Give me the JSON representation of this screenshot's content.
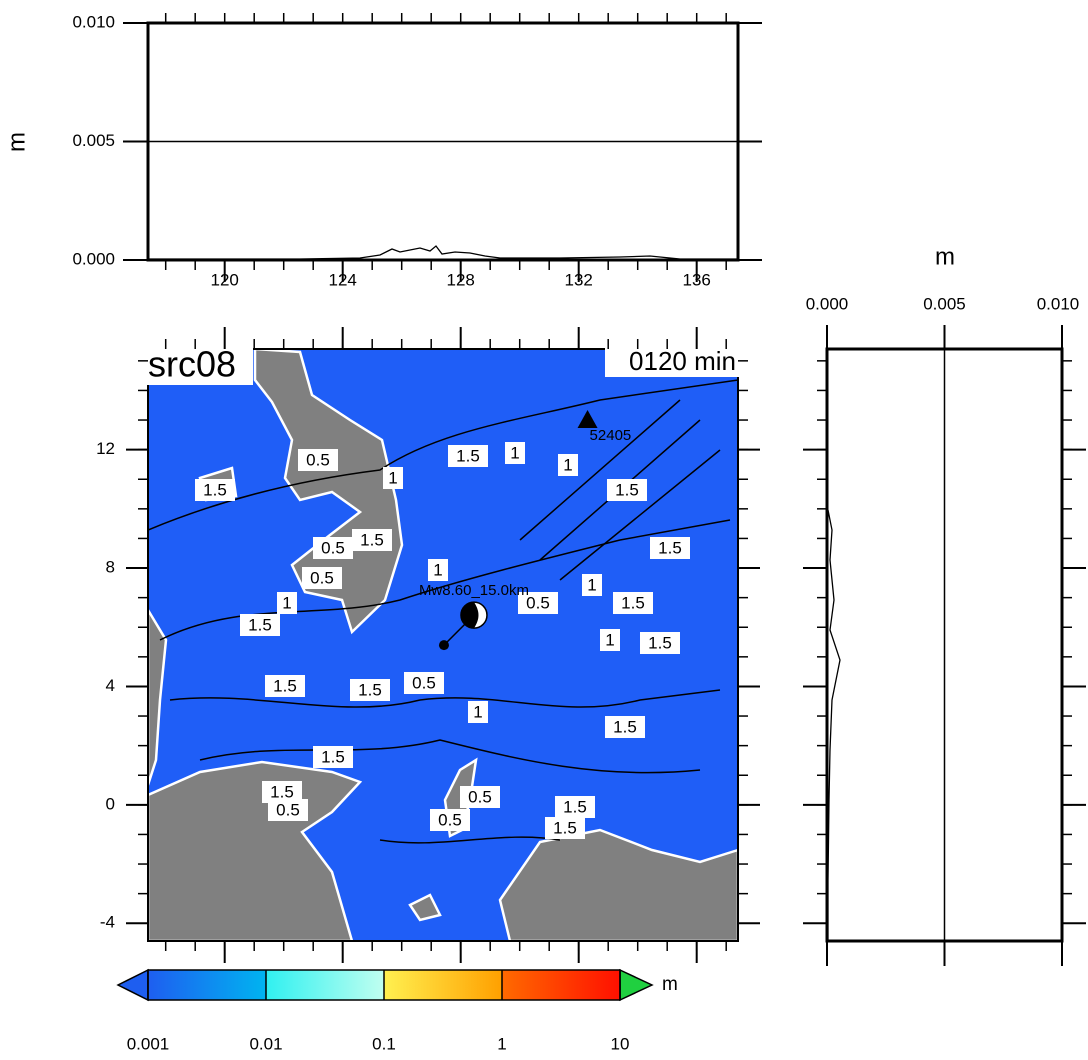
{
  "map": {
    "title": "src08",
    "time": "0120 min",
    "xlim": [
      117.4,
      137.4
    ],
    "ylim": [
      -4.6,
      15.4
    ],
    "xticks": [
      120,
      124,
      128,
      132,
      136
    ],
    "yticks": [
      12,
      8,
      4,
      0,
      -4
    ],
    "epicenter": {
      "label": "Mw8.60_15.0km",
      "lon": 128.45,
      "lat": 6.41
    },
    "station": {
      "label": "52405",
      "lon": 132.3,
      "lat": 13.0
    },
    "contour_labels": [
      0.5,
      1.5,
      1,
      1.5,
      1,
      1,
      1.5,
      1.5,
      0.5,
      0.5,
      1,
      1.5,
      1,
      0.5,
      1.5,
      1.5,
      1,
      1,
      1.5,
      1.5,
      1.5,
      0.5,
      1,
      1.5,
      1.5,
      1.5,
      0.5,
      0.5,
      1.5,
      1.5,
      0.5
    ]
  },
  "top_panel": {
    "ylabel": "m",
    "ylim": [
      0,
      0.01
    ],
    "yticks": [
      {
        "value": 0,
        "label": "0.000"
      },
      {
        "value": 0.005,
        "label": "0.005"
      },
      {
        "value": 0.01,
        "label": "0.010"
      }
    ]
  },
  "right_panel": {
    "xlabel": "m",
    "xlim": [
      0,
      0.01
    ],
    "xticks": [
      {
        "value": 0,
        "label": "0.000"
      },
      {
        "value": 0.005,
        "label": "0.005"
      },
      {
        "value": 0.01,
        "label": "0.010"
      }
    ]
  },
  "colorbar": {
    "unit": "m",
    "log": true,
    "ticks": [
      0.001,
      0.01,
      0.1,
      1,
      10
    ],
    "colors": [
      "#1e5ef0",
      "#00b4f0",
      "#30f0f0",
      "#c0fff0",
      "#fff050",
      "#ffa000",
      "#ff6a00",
      "#ff1000"
    ],
    "over_color": "#20d040"
  }
}
